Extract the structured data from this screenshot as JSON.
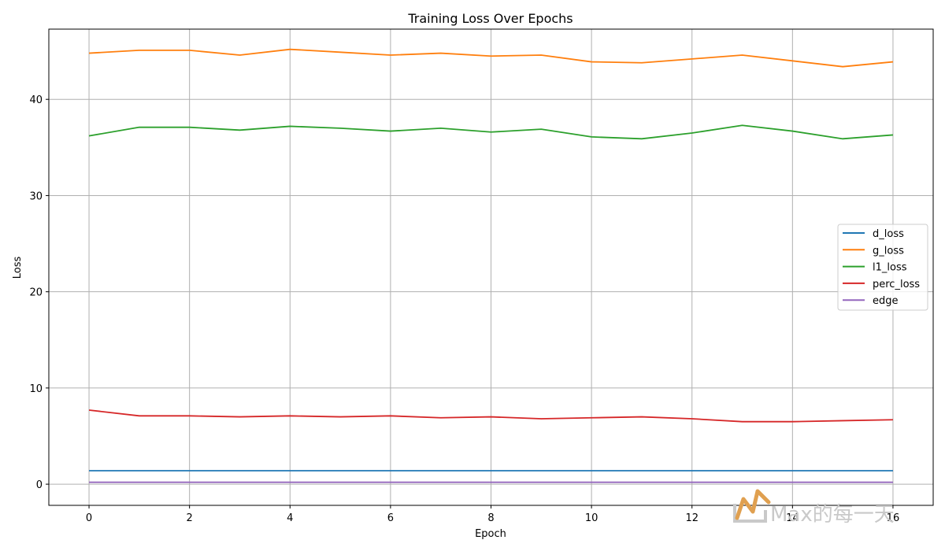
{
  "chart_data": {
    "type": "line",
    "title": "Training Loss Over Epochs",
    "xlabel": "Epoch",
    "ylabel": "Loss",
    "x": [
      0,
      1,
      2,
      3,
      4,
      5,
      6,
      7,
      8,
      9,
      10,
      11,
      12,
      13,
      14,
      15,
      16
    ],
    "xlim": [
      -0.8,
      16.8
    ],
    "ylim": [
      -2.2,
      47.3
    ],
    "xticks": [
      0,
      2,
      4,
      6,
      8,
      10,
      12,
      14,
      16
    ],
    "yticks": [
      0,
      10,
      20,
      30,
      40
    ],
    "grid": true,
    "legend_position": "center-right",
    "series": [
      {
        "name": "d_loss",
        "color": "#1f77b4",
        "values": [
          1.4,
          1.4,
          1.4,
          1.4,
          1.4,
          1.4,
          1.4,
          1.4,
          1.4,
          1.4,
          1.4,
          1.4,
          1.4,
          1.4,
          1.4,
          1.4,
          1.4
        ]
      },
      {
        "name": "g_loss",
        "color": "#ff7f0e",
        "values": [
          44.8,
          45.1,
          45.1,
          44.6,
          45.2,
          44.9,
          44.6,
          44.8,
          44.5,
          44.6,
          43.9,
          43.8,
          44.2,
          44.6,
          44.0,
          43.4,
          43.9
        ]
      },
      {
        "name": "l1_loss",
        "color": "#2ca02c",
        "values": [
          36.2,
          37.1,
          37.1,
          36.8,
          37.2,
          37.0,
          36.7,
          37.0,
          36.6,
          36.9,
          36.1,
          35.9,
          36.5,
          37.3,
          36.7,
          35.9,
          36.3
        ]
      },
      {
        "name": "perc_loss",
        "color": "#d62728",
        "values": [
          7.7,
          7.1,
          7.1,
          7.0,
          7.1,
          7.0,
          7.1,
          6.9,
          7.0,
          6.8,
          6.9,
          7.0,
          6.8,
          6.5,
          6.5,
          6.6,
          6.7
        ]
      },
      {
        "name": "edge",
        "color": "#9467bd",
        "values": [
          0.2,
          0.2,
          0.2,
          0.2,
          0.2,
          0.2,
          0.2,
          0.2,
          0.2,
          0.2,
          0.2,
          0.2,
          0.2,
          0.2,
          0.2,
          0.2,
          0.2
        ]
      }
    ]
  },
  "watermark": {
    "text": "Max的每一天",
    "color": "#c9c9c9",
    "accent_color": "#e0a050",
    "icon": "max-logo-icon"
  }
}
